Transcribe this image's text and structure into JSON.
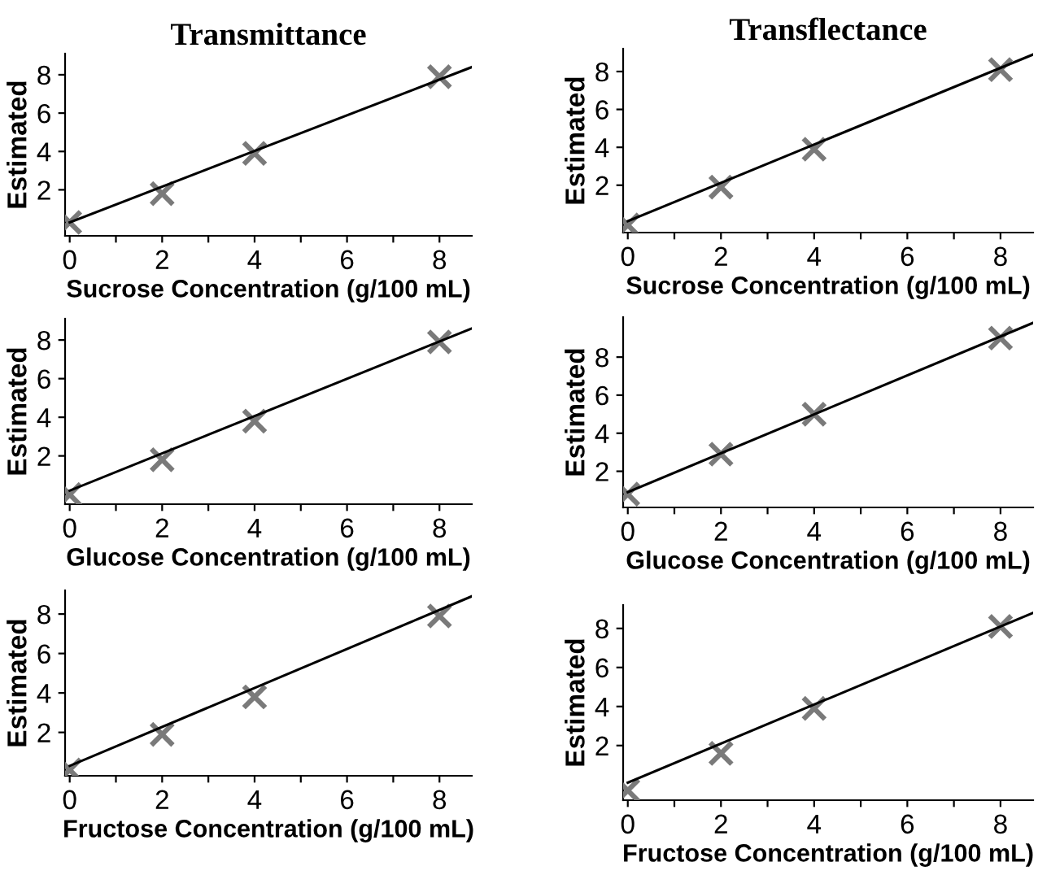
{
  "chart_data": [
    {
      "type": "scatter",
      "title": "Transmittance",
      "xlabel": "Sucrose Concentration (g/100 mL)",
      "ylabel": "Estimated",
      "grid": false,
      "legend": false,
      "xlim": [
        -0.1,
        8.7
      ],
      "ylim": [
        -0.4,
        9.1
      ],
      "xticks": [
        0,
        {
          "value": 1,
          "label": null
        },
        2,
        {
          "value": 3,
          "label": null
        },
        4,
        {
          "value": 5,
          "label": null
        },
        6,
        {
          "value": 7,
          "label": null
        },
        8
      ],
      "yticks": [
        2,
        4,
        6,
        8
      ],
      "series": [
        {
          "color": "#7a7a7a",
          "marker": "cross",
          "x": [
            0,
            2,
            4,
            8
          ],
          "values": [
            0.3,
            1.8,
            3.9,
            7.9
          ]
        },
        {
          "type": "line",
          "marker": "none",
          "color": "#000000",
          "x": [
            0,
            8.7
          ],
          "values": [
            0.3,
            8.4
          ]
        }
      ]
    },
    {
      "type": "scatter",
      "title": "Transflectance",
      "xlabel": "Sucrose Concentration (g/100 mL)",
      "ylabel": "Estimated",
      "grid": false,
      "legend": false,
      "xlim": [
        -0.1,
        8.7
      ],
      "ylim": [
        -0.5,
        9.2
      ],
      "xticks": [
        0,
        {
          "value": 1,
          "label": null
        },
        2,
        {
          "value": 3,
          "label": null
        },
        4,
        {
          "value": 5,
          "label": null
        },
        6,
        {
          "value": 7,
          "label": null
        },
        8
      ],
      "yticks": [
        2,
        4,
        6,
        8
      ],
      "series": [
        {
          "color": "#7a7a7a",
          "marker": "cross",
          "x": [
            0,
            2,
            4,
            8
          ],
          "values": [
            -0.1,
            1.9,
            3.9,
            8.1
          ]
        },
        {
          "type": "line",
          "marker": "none",
          "color": "#000000",
          "x": [
            0,
            8.7
          ],
          "values": [
            0.1,
            8.9
          ]
        }
      ]
    },
    {
      "type": "scatter",
      "xlabel": "Glucose Concentration (g/100 mL)",
      "ylabel": "Estimated",
      "grid": false,
      "legend": false,
      "xlim": [
        -0.1,
        8.7
      ],
      "ylim": [
        -0.5,
        9.1
      ],
      "xticks": [
        0,
        {
          "value": 1,
          "label": null
        },
        2,
        {
          "value": 3,
          "label": null
        },
        4,
        {
          "value": 5,
          "label": null
        },
        6,
        {
          "value": 7,
          "label": null
        },
        8
      ],
      "yticks": [
        2,
        4,
        6,
        8
      ],
      "series": [
        {
          "color": "#7a7a7a",
          "marker": "cross",
          "x": [
            0,
            2,
            4,
            8
          ],
          "values": [
            0,
            1.8,
            3.8,
            7.9
          ]
        },
        {
          "type": "line",
          "marker": "none",
          "color": "#000000",
          "x": [
            0,
            8.7
          ],
          "values": [
            0.2,
            8.6
          ]
        }
      ]
    },
    {
      "type": "scatter",
      "xlabel": "Glucose Concentration (g/100 mL)",
      "ylabel": "Estimated",
      "grid": false,
      "legend": false,
      "xlim": [
        -0.1,
        8.7
      ],
      "ylim": [
        0.1,
        10.1
      ],
      "xticks": [
        0,
        {
          "value": 1,
          "label": null
        },
        2,
        {
          "value": 3,
          "label": null
        },
        4,
        {
          "value": 5,
          "label": null
        },
        6,
        {
          "value": 7,
          "label": null
        },
        8
      ],
      "yticks": [
        2,
        4,
        6,
        8
      ],
      "series": [
        {
          "color": "#7a7a7a",
          "marker": "cross",
          "x": [
            0,
            2,
            4,
            8
          ],
          "values": [
            0.8,
            2.9,
            5.0,
            9.0
          ]
        },
        {
          "type": "line",
          "marker": "none",
          "color": "#000000",
          "x": [
            0,
            8.7
          ],
          "values": [
            0.9,
            9.8
          ]
        }
      ]
    },
    {
      "type": "scatter",
      "xlabel": "Fructose Concentration (g/100 mL)",
      "ylabel": "Estimated",
      "grid": false,
      "legend": false,
      "xlim": [
        -0.1,
        8.7
      ],
      "ylim": [
        -0.2,
        9.2
      ],
      "xticks": [
        0,
        {
          "value": 1,
          "label": null
        },
        2,
        {
          "value": 3,
          "label": null
        },
        4,
        {
          "value": 5,
          "label": null
        },
        6,
        {
          "value": 7,
          "label": null
        },
        8
      ],
      "yticks": [
        2,
        4,
        6,
        8
      ],
      "series": [
        {
          "color": "#7a7a7a",
          "marker": "cross",
          "x": [
            0,
            2,
            4,
            8
          ],
          "values": [
            0.1,
            1.9,
            3.8,
            7.9
          ]
        },
        {
          "type": "line",
          "marker": "none",
          "color": "#000000",
          "x": [
            0,
            8.7
          ],
          "values": [
            0.3,
            8.9
          ]
        }
      ]
    },
    {
      "type": "scatter",
      "xlabel": "Fructose Concentration (g/100 mL)",
      "ylabel": "Estimated",
      "grid": false,
      "legend": false,
      "xlim": [
        -0.1,
        8.7
      ],
      "ylim": [
        -0.8,
        9.2
      ],
      "xticks": [
        0,
        {
          "value": 1,
          "label": null
        },
        2,
        {
          "value": 3,
          "label": null
        },
        4,
        {
          "value": 5,
          "label": null
        },
        6,
        {
          "value": 7,
          "label": null
        },
        8
      ],
      "yticks": [
        2,
        4,
        6,
        8
      ],
      "series": [
        {
          "color": "#7a7a7a",
          "marker": "cross",
          "x": [
            0,
            2,
            4,
            8
          ],
          "values": [
            -0.3,
            1.6,
            3.9,
            8.1
          ]
        },
        {
          "type": "line",
          "marker": "none",
          "color": "#000000",
          "x": [
            0,
            8.7
          ],
          "values": [
            0.1,
            8.8
          ]
        }
      ]
    }
  ]
}
